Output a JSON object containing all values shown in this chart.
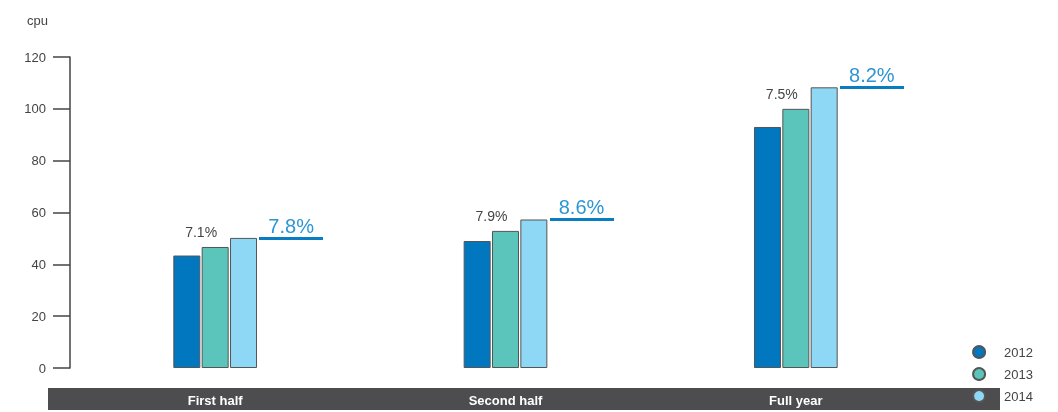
{
  "chart_data": {
    "type": "bar",
    "ylabel": "cpu",
    "categories": [
      "First half",
      "Second half",
      "Full year"
    ],
    "series": [
      {
        "name": "2012",
        "color": "#0077be",
        "values": [
          43.4,
          49,
          93
        ]
      },
      {
        "name": "2013",
        "color": "#5bc5bb",
        "values": [
          46.7,
          52.9,
          100
        ]
      },
      {
        "name": "2014",
        "color": "#8fd8f5",
        "values": [
          50.2,
          57.3,
          108.3
        ]
      }
    ],
    "ylim": [
      0,
      120
    ],
    "yticks": [
      0,
      20,
      40,
      60,
      80,
      100,
      120
    ],
    "grid": false,
    "legend": "bottom right",
    "annotations": [
      "7.1%",
      "7.8%",
      "7.9%",
      "8.6%",
      "7.5%",
      "8.2%"
    ]
  }
}
